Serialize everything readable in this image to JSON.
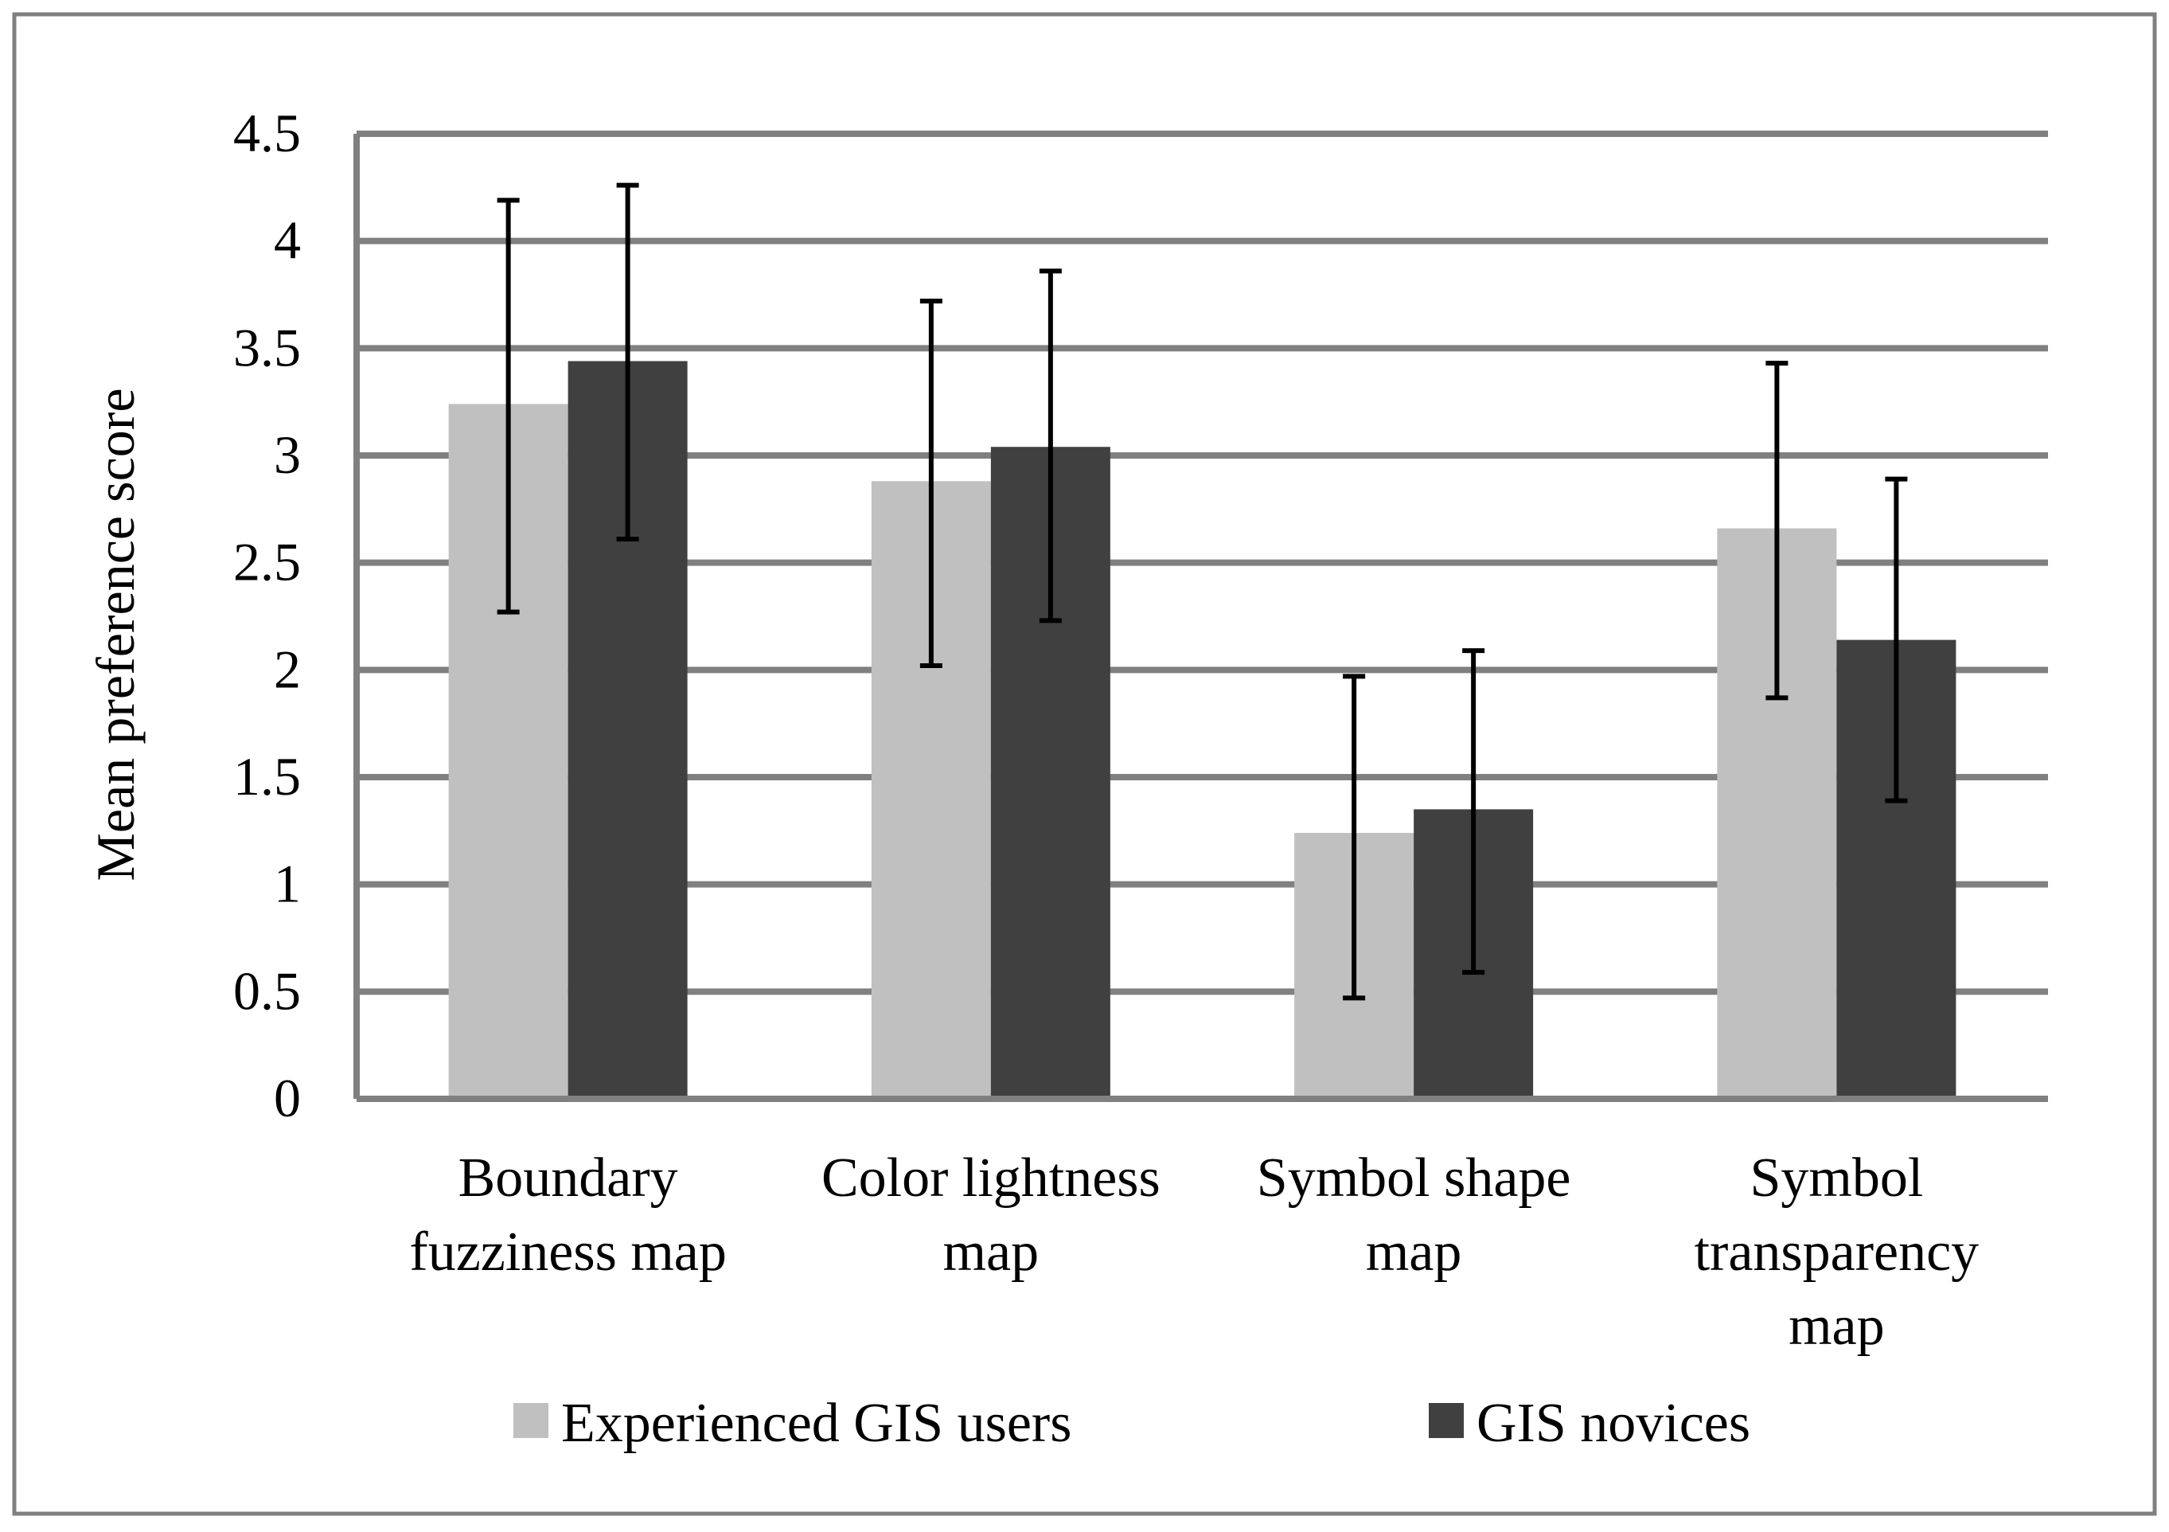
{
  "chart_data": {
    "type": "bar",
    "title": "",
    "xlabel": "",
    "ylabel": "Mean preference score",
    "ylim": [
      0,
      4.5
    ],
    "yticks": [
      "0",
      "0.5",
      "1",
      "1.5",
      "2",
      "2.5",
      "3",
      "3.5",
      "4",
      "4.5"
    ],
    "grid": true,
    "legend_position": "bottom",
    "categories": [
      [
        "Boundary",
        "fuzziness map"
      ],
      [
        "Color lightness",
        "map"
      ],
      [
        "Symbol shape",
        "map"
      ],
      [
        "Symbol",
        "transparency",
        "map"
      ]
    ],
    "series": [
      {
        "name": "Experienced GIS users",
        "color": "#c0c0c0",
        "values": [
          3.24,
          2.88,
          1.24,
          2.66
        ],
        "error_low": [
          2.27,
          2.02,
          0.47,
          1.87
        ],
        "error_high": [
          4.19,
          3.72,
          1.97,
          3.43
        ]
      },
      {
        "name": "GIS novices",
        "color": "#404040",
        "values": [
          3.44,
          3.04,
          1.35,
          2.14
        ],
        "error_low": [
          2.61,
          2.23,
          0.59,
          1.39
        ],
        "error_high": [
          4.26,
          3.86,
          2.09,
          2.89
        ]
      }
    ]
  }
}
